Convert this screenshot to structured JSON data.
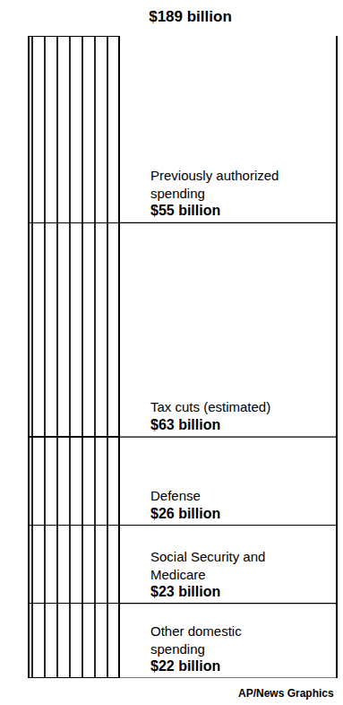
{
  "chart_data": {
    "type": "bar",
    "title": "$189 billion",
    "source": "AP/News Graphics",
    "categories": [
      null
    ],
    "stacked": true,
    "data_labels": true,
    "tick_labels": false,
    "grid": false,
    "color": "#ffffff",
    "ylim": [
      0,
      189
    ],
    "yticks": [],
    "series": [
      {
        "name": "Other domestic spending",
        "values": [
          22
        ],
        "value_labels": [
          "$22 billion"
        ]
      },
      {
        "name": "Social Security and Medicare",
        "values": [
          23
        ],
        "value_labels": [
          "$23 billion"
        ]
      },
      {
        "name": "Defense",
        "values": [
          26
        ],
        "value_labels": [
          "$26 billion"
        ]
      },
      {
        "name": "Tax cuts (estimated)",
        "values": [
          63
        ],
        "value_labels": [
          "$63 billion"
        ]
      },
      {
        "name": "Previously authorized spending",
        "values": [
          55
        ],
        "value_labels": [
          "$55 billion"
        ]
      }
    ]
  }
}
